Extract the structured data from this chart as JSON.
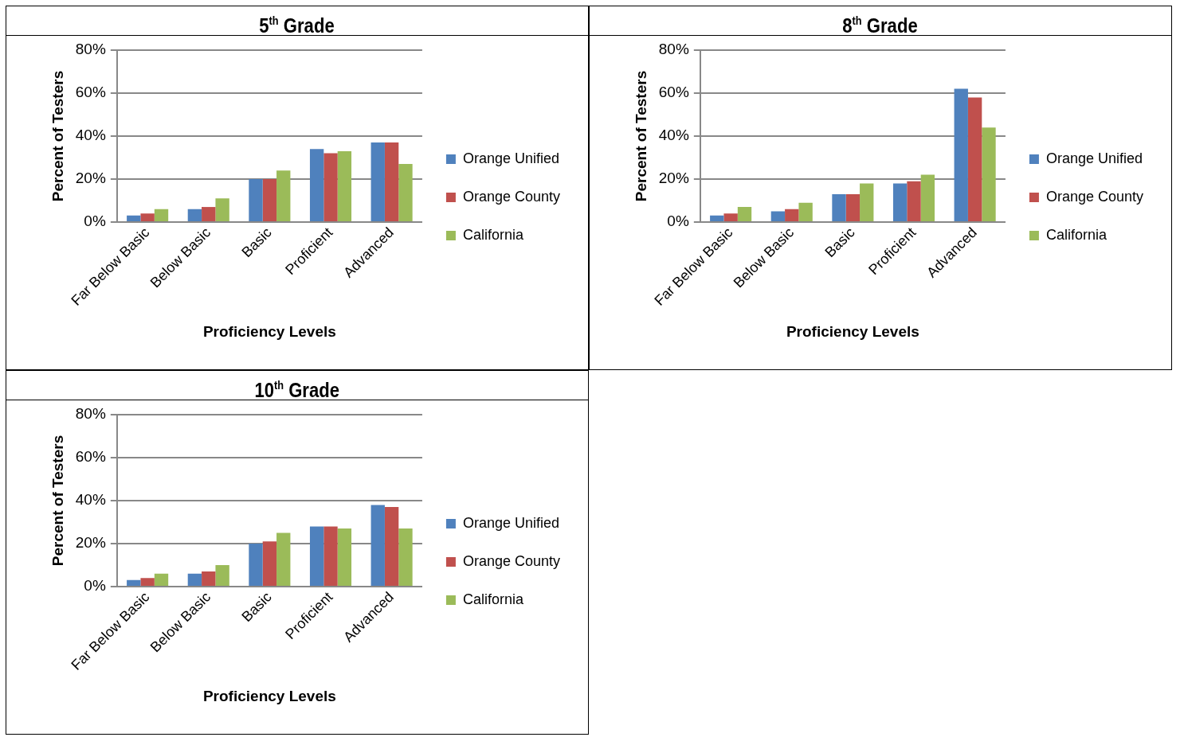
{
  "chart_data": [
    {
      "type": "bar",
      "title": "5$^{th}$ Grade",
      "xlabel": "Proficiency Levels",
      "ylabel": "Percent of Testers",
      "categories": [
        "Far Below Basic",
        "Below Basic",
        "Basic",
        "Proficient",
        "Advanced"
      ],
      "series": [
        {
          "name": "Orange Unified",
          "color": "#4f81bd",
          "values": [
            3,
            6,
            20,
            34,
            37
          ]
        },
        {
          "name": "Orange County",
          "color": "#c0504d",
          "values": [
            4,
            7,
            20,
            32,
            37
          ]
        },
        {
          "name": "California",
          "color": "#9bbb59",
          "values": [
            6,
            11,
            24,
            33,
            27
          ]
        }
      ],
      "ylim": [
        0,
        80
      ],
      "yticks": [
        {
          "value": 0,
          "label": "0%"
        },
        {
          "value": 20,
          "label": "20%"
        },
        {
          "value": 40,
          "label": "40%"
        },
        {
          "value": 60,
          "label": "60%"
        },
        {
          "value": 80,
          "label": "80%"
        }
      ],
      "grid": "y",
      "legend": "right"
    },
    {
      "type": "bar",
      "title": "8$^{th}$ Grade",
      "xlabel": "Proficiency Levels",
      "ylabel": "Percent of Testers",
      "categories": [
        "Far Below Basic",
        "Below Basic",
        "Basic",
        "Proficient",
        "Advanced"
      ],
      "series": [
        {
          "name": "Orange Unified",
          "color": "#4f81bd",
          "values": [
            3,
            5,
            13,
            18,
            62
          ]
        },
        {
          "name": "Orange County",
          "color": "#c0504d",
          "values": [
            4,
            6,
            13,
            19,
            58
          ]
        },
        {
          "name": "California",
          "color": "#9bbb59",
          "values": [
            7,
            9,
            18,
            22,
            44
          ]
        }
      ],
      "ylim": [
        0,
        80
      ],
      "yticks": [
        {
          "value": 0,
          "label": "0%"
        },
        {
          "value": 20,
          "label": "20%"
        },
        {
          "value": 40,
          "label": "40%"
        },
        {
          "value": 60,
          "label": "60%"
        },
        {
          "value": 80,
          "label": "80%"
        }
      ],
      "grid": "y",
      "legend": "right"
    },
    {
      "type": "bar",
      "title": "10$^{th}$ Grade",
      "xlabel": "Proficiency Levels",
      "ylabel": "Percent of Testers",
      "categories": [
        "Far Below Basic",
        "Below Basic",
        "Basic",
        "Proficient",
        "Advanced"
      ],
      "series": [
        {
          "name": "Orange Unified",
          "color": "#4f81bd",
          "values": [
            3,
            6,
            20,
            28,
            38
          ]
        },
        {
          "name": "Orange County",
          "color": "#c0504d",
          "values": [
            4,
            7,
            21,
            28,
            37
          ]
        },
        {
          "name": "California",
          "color": "#9bbb59",
          "values": [
            6,
            10,
            25,
            27,
            27
          ]
        }
      ],
      "ylim": [
        0,
        80
      ],
      "yticks": [
        {
          "value": 0,
          "label": "0%"
        },
        {
          "value": 20,
          "label": "20%"
        },
        {
          "value": 40,
          "label": "40%"
        },
        {
          "value": 60,
          "label": "60%"
        },
        {
          "value": 80,
          "label": "80%"
        }
      ],
      "grid": "y",
      "legend": "right"
    }
  ]
}
